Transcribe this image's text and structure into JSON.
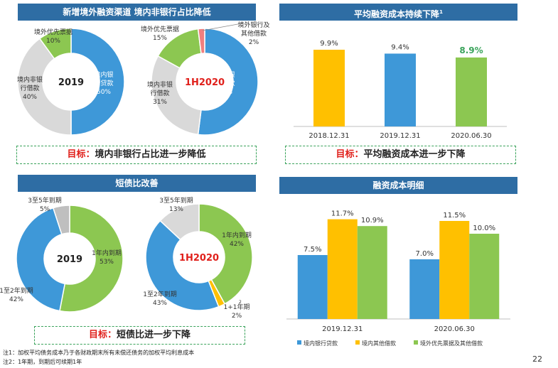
{
  "panels": {
    "tl": {
      "title": "新增境外融资渠道 境内非银行占比降低",
      "target_key": "目标：",
      "target_text": "境内非银行占比进一步降低"
    },
    "tr": {
      "title": "平均融资成本持续下降",
      "title_sup": "1",
      "target_key": "目标：",
      "target_text": "平均融资成本进一步下降"
    },
    "bl": {
      "title": "短债比改善",
      "target_key": "目标：",
      "target_text": "短债比进一步下降"
    },
    "br": {
      "title": "融资成本明细"
    }
  },
  "chart_data": [
    {
      "type": "pie",
      "center_label": "2019",
      "slices": [
        {
          "name": "境内银行贷款",
          "value": 50,
          "label_lines": [
            "境内银",
            "行贷款",
            "50%"
          ],
          "color": "#3e98d8"
        },
        {
          "name": "境内非银行借款",
          "value": 40,
          "label_lines": [
            "境内非银",
            "行借款",
            "40%"
          ],
          "color": "#d9d9d9"
        },
        {
          "name": "境外优先票据",
          "value": 10,
          "label_lines": [
            "境外优先票据",
            "10%"
          ],
          "color": "#8cc751"
        }
      ]
    },
    {
      "type": "pie",
      "center_label": "1H2020",
      "slices": [
        {
          "name": "境内银行贷款",
          "value": 52,
          "label_lines": [
            "境内银",
            "行贷款",
            "52%"
          ],
          "color": "#3e98d8"
        },
        {
          "name": "境内非银行借款",
          "value": 31,
          "label_lines": [
            "境内非银",
            "行借款",
            "31%"
          ],
          "color": "#d9d9d9"
        },
        {
          "name": "境外优先票据",
          "value": 15,
          "label_lines": [
            "境外优先票据",
            "15%"
          ],
          "color": "#8cc751"
        },
        {
          "name": "境外银行及其他借款",
          "value": 2,
          "label_lines": [
            "境外银行及",
            "其他借款",
            "2%"
          ],
          "color": "#f07f7f"
        }
      ]
    },
    {
      "type": "bar",
      "categories": [
        "2018.12.31",
        "2019.12.31",
        "2020.06.30"
      ],
      "values": [
        9.9,
        9.4,
        8.9
      ],
      "value_labels": [
        "9.9%",
        "9.4%",
        "8.9%"
      ],
      "colors": [
        "#ffc000",
        "#3e98d8",
        "#8cc751"
      ],
      "ylim": [
        0,
        11
      ]
    },
    {
      "type": "pie",
      "center_label": "2019",
      "slices": [
        {
          "name": "1年内到期",
          "value": 53,
          "label_lines": [
            "1年内到期",
            "53%"
          ],
          "color": "#8cc751"
        },
        {
          "name": "1至2年到期",
          "value": 42,
          "label_lines": [
            "1至2年到期",
            "42%"
          ],
          "color": "#3e98d8"
        },
        {
          "name": "3至5年到期",
          "value": 5,
          "label_lines": [
            "3至5年到期",
            "5%"
          ],
          "color": "#bfbfbf"
        }
      ]
    },
    {
      "type": "pie",
      "center_label": "1H2020",
      "slices": [
        {
          "name": "1年内到期",
          "value": 42,
          "label_lines": [
            "1年内到期",
            "42%"
          ],
          "color": "#8cc751"
        },
        {
          "name": "1+1年期",
          "value": 2,
          "label_lines": [
            "1+1年期",
            "2%"
          ],
          "color": "#ffc000"
        },
        {
          "name": "1至2年到期",
          "value": 43,
          "label_lines": [
            "1至2年到期",
            "43%"
          ],
          "color": "#3e98d8"
        },
        {
          "name": "3至5年到期",
          "value": 13,
          "label_lines": [
            "3至5年到期",
            "13%"
          ],
          "color": "#d9d9d9"
        }
      ]
    },
    {
      "type": "bar",
      "categories": [
        "2019.12.31",
        "2020.06.30"
      ],
      "series": [
        {
          "name": "境内银行贷款",
          "values": [
            7.5,
            7.0
          ],
          "value_labels": [
            "7.5%",
            "7.0%"
          ],
          "color": "#3e98d8"
        },
        {
          "name": "境内其他借款",
          "values": [
            11.7,
            11.5
          ],
          "value_labels": [
            "11.7%",
            "11.5%"
          ],
          "color": "#ffc000"
        },
        {
          "name": "境外优先票据及其他借款",
          "values": [
            10.9,
            10.0
          ],
          "value_labels": [
            "10.9%",
            "10.0%"
          ],
          "color": "#8cc751"
        }
      ],
      "ylim": [
        0,
        12.5
      ]
    }
  ],
  "footnotes": [
    "注1：加权平均债务成本乃于各财政期末所有未偿还债务的加权平均利息成本",
    "注2：1年期，到期后可续期1年"
  ],
  "footnote_ref": "2",
  "page_number": "22"
}
